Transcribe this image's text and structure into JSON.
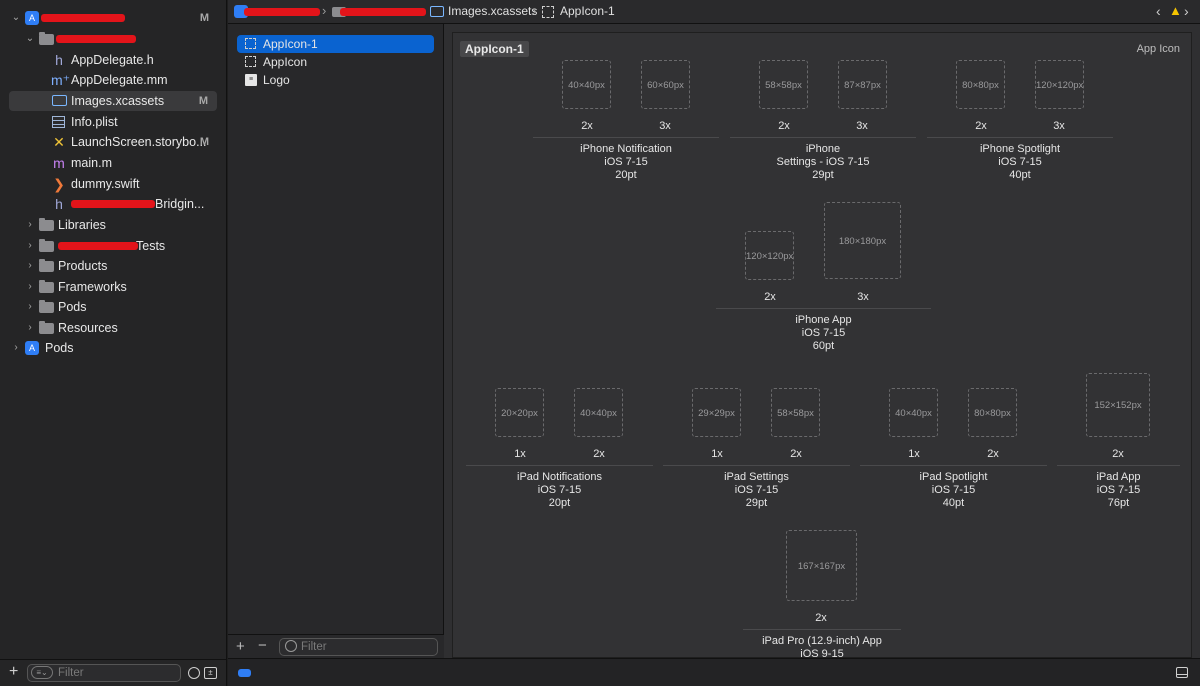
{
  "navigator": {
    "items": [
      {
        "label": "",
        "status": "M",
        "redacted": true
      },
      {
        "label": "",
        "redacted": true
      },
      {
        "label": "AppDelegate.h"
      },
      {
        "label": "AppDelegate.mm"
      },
      {
        "label": "Images.xcassets",
        "status": "M"
      },
      {
        "label": "Info.plist"
      },
      {
        "label": "LaunchScreen.storybo...",
        "status": "M"
      },
      {
        "label": "main.m"
      },
      {
        "label": "dummy.swift"
      },
      {
        "label": "Bridgin..."
      },
      {
        "label": "Libraries"
      },
      {
        "label": "Tests"
      },
      {
        "label": "Products"
      },
      {
        "label": "Frameworks"
      },
      {
        "label": "Pods"
      },
      {
        "label": "Resources"
      },
      {
        "label": "Pods"
      }
    ],
    "filter_placeholder": "Filter"
  },
  "breadcrumb": {
    "items": [
      "Images.xcassets",
      "AppIcon-1"
    ]
  },
  "asset_list": {
    "items": [
      "AppIcon-1",
      "AppIcon",
      "Logo"
    ],
    "filter_placeholder": "Filter"
  },
  "editor": {
    "set_name": "AppIcon-1",
    "type_label": "App Icon",
    "groups": [
      {
        "slots": [
          {
            "size": "40×40px",
            "scale": "2x"
          },
          {
            "size": "60×60px",
            "scale": "3x"
          }
        ],
        "caption": "iPhone Notification\niOS 7-15\n20pt"
      },
      {
        "slots": [
          {
            "size": "58×58px",
            "scale": "2x"
          },
          {
            "size": "87×87px",
            "scale": "3x"
          }
        ],
        "caption": "iPhone\nSettings - iOS 7-15\n29pt"
      },
      {
        "slots": [
          {
            "size": "80×80px",
            "scale": "2x"
          },
          {
            "size": "120×120px",
            "scale": "3x"
          }
        ],
        "caption": "iPhone Spotlight\niOS 7-15\n40pt"
      },
      {
        "slots": [
          {
            "size": "120×120px",
            "scale": "2x"
          },
          {
            "size": "180×180px",
            "scale": "3x"
          }
        ],
        "caption": "iPhone App\niOS 7-15\n60pt"
      },
      {
        "slots": [
          {
            "size": "20×20px",
            "scale": "1x"
          },
          {
            "size": "40×40px",
            "scale": "2x"
          }
        ],
        "caption": "iPad Notifications\niOS 7-15\n20pt"
      },
      {
        "slots": [
          {
            "size": "29×29px",
            "scale": "1x"
          },
          {
            "size": "58×58px",
            "scale": "2x"
          }
        ],
        "caption": "iPad Settings\niOS 7-15\n29pt"
      },
      {
        "slots": [
          {
            "size": "40×40px",
            "scale": "1x"
          },
          {
            "size": "80×80px",
            "scale": "2x"
          }
        ],
        "caption": "iPad Spotlight\niOS 7-15\n40pt"
      },
      {
        "slots": [
          {
            "size": "152×152px",
            "scale": "2x"
          }
        ],
        "caption": "iPad App\niOS 7-15\n76pt"
      },
      {
        "slots": [
          {
            "size": "167×167px",
            "scale": "2x"
          }
        ],
        "caption": "iPad Pro (12.9-inch) App\niOS 9-15"
      }
    ]
  }
}
